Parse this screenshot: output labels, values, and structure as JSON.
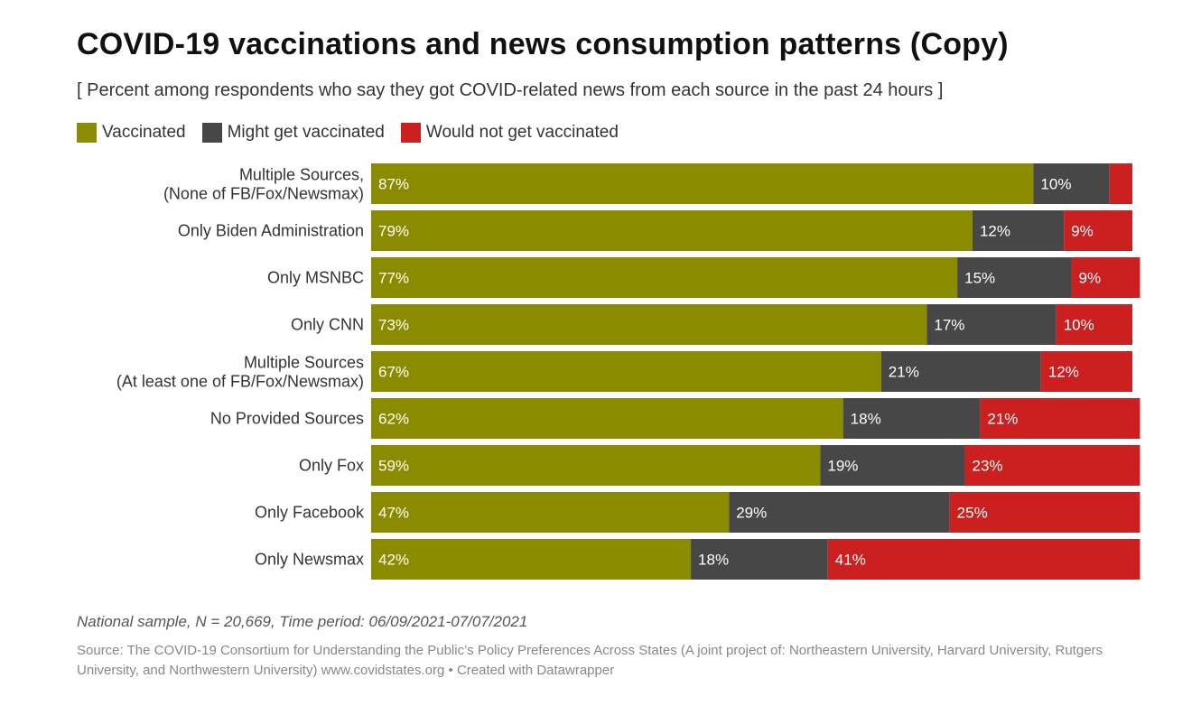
{
  "title": "COVID-19 vaccinations and news consumption patterns (Copy)",
  "subtitle": "[ Percent among respondents who say they got COVID-related news from each source in the past 24 hours ]",
  "notes": "National sample, N = 20,669, Time period: 06/09/2021-07/07/2021",
  "source": "Source: The COVID-19 Consortium for Understanding the Public’s Policy Preferences Across States (A joint project of: Northeastern University, Harvard University, Rutgers University, and Northwestern University) www.covidstates.org • Created with Datawrapper",
  "colors": {
    "vaccinated": "#8b8b00",
    "might": "#474747",
    "would_not": "#cc1f1f"
  },
  "legend": [
    {
      "label": "Vaccinated",
      "color": "#8b8b00"
    },
    {
      "label": "Might get vaccinated",
      "color": "#474747"
    },
    {
      "label": "Would not get vaccinated",
      "color": "#cc1f1f"
    }
  ],
  "chart_data": {
    "type": "bar",
    "orientation": "horizontal",
    "stacked": true,
    "title": "COVID-19 vaccinations and news consumption patterns (Copy)",
    "categories": [
      [
        "Multiple Sources,",
        "(None of FB/Fox/Newsmax)"
      ],
      [
        "Only Biden Administration"
      ],
      [
        "Only MSNBC"
      ],
      [
        "Only CNN"
      ],
      [
        "Multiple Sources",
        "(At least one of FB/Fox/Newsmax)"
      ],
      [
        "No Provided Sources"
      ],
      [
        "Only Fox"
      ],
      [
        "Only Facebook"
      ],
      [
        "Only Newsmax"
      ]
    ],
    "series": [
      {
        "name": "Vaccinated",
        "color": "#8b8b00",
        "values": [
          87,
          79,
          77,
          73,
          67,
          62,
          59,
          47,
          42
        ]
      },
      {
        "name": "Might get vaccinated",
        "color": "#474747",
        "values": [
          10,
          12,
          15,
          17,
          21,
          18,
          19,
          29,
          18
        ]
      },
      {
        "name": "Would not get vaccinated",
        "color": "#cc1f1f",
        "values": [
          3,
          9,
          9,
          10,
          12,
          21,
          23,
          25,
          41
        ]
      }
    ],
    "data_labels": [
      [
        "87%",
        "10%",
        ""
      ],
      [
        "79%",
        "12%",
        "9%"
      ],
      [
        "77%",
        "15%",
        "9%"
      ],
      [
        "73%",
        "17%",
        "10%"
      ],
      [
        "67%",
        "21%",
        "12%"
      ],
      [
        "62%",
        "18%",
        "21%"
      ],
      [
        "59%",
        "19%",
        "23%"
      ],
      [
        "47%",
        "29%",
        "25%"
      ],
      [
        "42%",
        "18%",
        "41%"
      ]
    ],
    "xlim": [
      0,
      100
    ],
    "xlabel": "",
    "ylabel": "",
    "grid": false,
    "legend_position": "top-left"
  }
}
